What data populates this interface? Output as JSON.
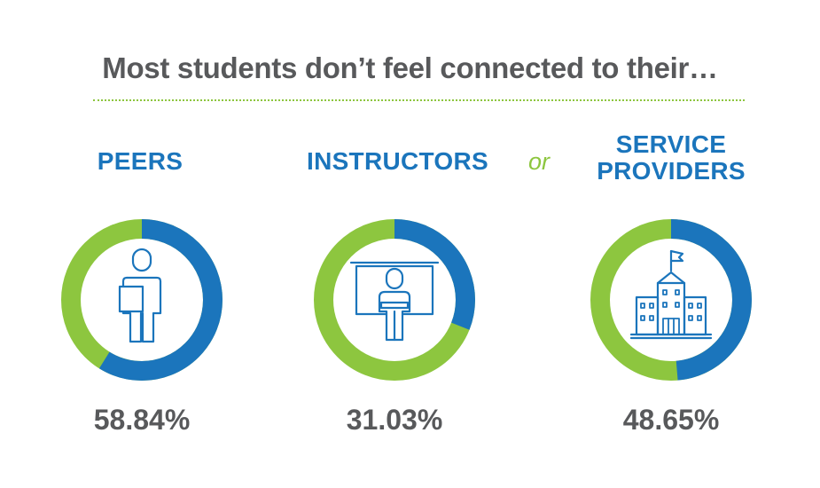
{
  "header": {
    "title": "Most students don’t feel connected to their…"
  },
  "connector": "or",
  "colors": {
    "blue": "#1b75bc",
    "green": "#8dc63f",
    "text": "#58595b"
  },
  "chart_data": {
    "type": "pie",
    "title": "Most students don’t feel connected to their…",
    "charts": [
      {
        "label": "PEERS",
        "value": 58.84,
        "value_label": "58.84%",
        "icon": "student-icon"
      },
      {
        "label": "INSTRUCTORS",
        "value": 31.03,
        "value_label": "31.03%",
        "icon": "instructor-icon"
      },
      {
        "label": "SERVICE PROVIDERS",
        "label_lines": [
          "SERVICE",
          "PROVIDERS"
        ],
        "value": 48.65,
        "value_label": "48.65%",
        "icon": "building-icon"
      }
    ]
  }
}
